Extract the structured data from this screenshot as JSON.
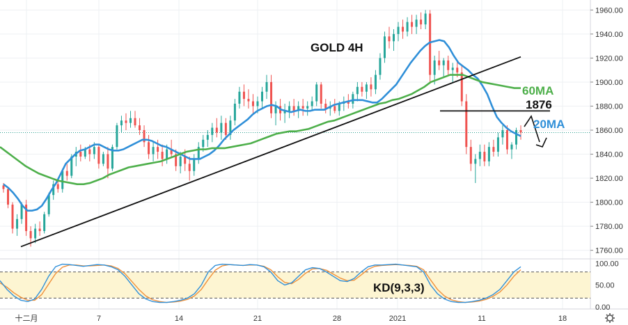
{
  "chart_data": {
    "type": "line",
    "title": "GOLD 4H",
    "price_axis": {
      "ticks": [
        1760,
        1780,
        1800,
        1820,
        1840,
        1860,
        1880,
        1900,
        1920,
        1940,
        1960
      ],
      "tick_labels": [
        "1760.00",
        "1780.00",
        "1800.00",
        "1820.00",
        "1840.00",
        "1860.00",
        "1880.00",
        "1900.00",
        "1920.00",
        "1940.00",
        "1960.00"
      ],
      "range": [
        1754,
        1966
      ]
    },
    "kd_axis": {
      "ticks": [
        0,
        50,
        100
      ],
      "tick_labels": [
        "0.00",
        "50.00",
        "100.00"
      ],
      "range": [
        -5,
        110
      ],
      "bands": [
        20,
        80
      ]
    },
    "x_labels": [
      "十二月",
      "7",
      "14",
      "21",
      "28",
      "2021",
      "11",
      "18"
    ],
    "last_price": 1858,
    "candles": [
      {
        "o": 1814,
        "h": 1816,
        "l": 1808,
        "c": 1811
      },
      {
        "o": 1811,
        "h": 1813,
        "l": 1795,
        "c": 1798
      },
      {
        "o": 1798,
        "h": 1800,
        "l": 1774,
        "c": 1778
      },
      {
        "o": 1778,
        "h": 1790,
        "l": 1772,
        "c": 1786
      },
      {
        "o": 1786,
        "h": 1800,
        "l": 1782,
        "c": 1798
      },
      {
        "o": 1798,
        "h": 1802,
        "l": 1772,
        "c": 1776
      },
      {
        "o": 1776,
        "h": 1780,
        "l": 1763,
        "c": 1770
      },
      {
        "o": 1770,
        "h": 1782,
        "l": 1766,
        "c": 1778
      },
      {
        "o": 1778,
        "h": 1784,
        "l": 1772,
        "c": 1776
      },
      {
        "o": 1776,
        "h": 1792,
        "l": 1774,
        "c": 1790
      },
      {
        "o": 1790,
        "h": 1808,
        "l": 1788,
        "c": 1806
      },
      {
        "o": 1806,
        "h": 1818,
        "l": 1802,
        "c": 1815
      },
      {
        "o": 1815,
        "h": 1820,
        "l": 1808,
        "c": 1811
      },
      {
        "o": 1811,
        "h": 1828,
        "l": 1808,
        "c": 1826
      },
      {
        "o": 1826,
        "h": 1832,
        "l": 1818,
        "c": 1822
      },
      {
        "o": 1822,
        "h": 1840,
        "l": 1820,
        "c": 1838
      },
      {
        "o": 1838,
        "h": 1846,
        "l": 1830,
        "c": 1842
      },
      {
        "o": 1842,
        "h": 1848,
        "l": 1834,
        "c": 1838
      },
      {
        "o": 1838,
        "h": 1846,
        "l": 1836,
        "c": 1844
      },
      {
        "o": 1844,
        "h": 1848,
        "l": 1834,
        "c": 1840
      },
      {
        "o": 1840,
        "h": 1850,
        "l": 1836,
        "c": 1846
      },
      {
        "o": 1846,
        "h": 1848,
        "l": 1828,
        "c": 1832
      },
      {
        "o": 1832,
        "h": 1842,
        "l": 1830,
        "c": 1840
      },
      {
        "o": 1840,
        "h": 1846,
        "l": 1820,
        "c": 1828
      },
      {
        "o": 1828,
        "h": 1848,
        "l": 1826,
        "c": 1846
      },
      {
        "o": 1846,
        "h": 1866,
        "l": 1844,
        "c": 1864
      },
      {
        "o": 1864,
        "h": 1872,
        "l": 1858,
        "c": 1868
      },
      {
        "o": 1868,
        "h": 1874,
        "l": 1860,
        "c": 1866
      },
      {
        "o": 1866,
        "h": 1876,
        "l": 1862,
        "c": 1870
      },
      {
        "o": 1870,
        "h": 1876,
        "l": 1862,
        "c": 1864
      },
      {
        "o": 1864,
        "h": 1870,
        "l": 1856,
        "c": 1860
      },
      {
        "o": 1860,
        "h": 1864,
        "l": 1846,
        "c": 1850
      },
      {
        "o": 1850,
        "h": 1856,
        "l": 1836,
        "c": 1840
      },
      {
        "o": 1840,
        "h": 1850,
        "l": 1834,
        "c": 1846
      },
      {
        "o": 1846,
        "h": 1852,
        "l": 1836,
        "c": 1842
      },
      {
        "o": 1842,
        "h": 1848,
        "l": 1830,
        "c": 1836
      },
      {
        "o": 1836,
        "h": 1848,
        "l": 1832,
        "c": 1844
      },
      {
        "o": 1844,
        "h": 1852,
        "l": 1838,
        "c": 1840
      },
      {
        "o": 1840,
        "h": 1844,
        "l": 1826,
        "c": 1830
      },
      {
        "o": 1830,
        "h": 1842,
        "l": 1824,
        "c": 1838
      },
      {
        "o": 1838,
        "h": 1844,
        "l": 1826,
        "c": 1832
      },
      {
        "o": 1832,
        "h": 1838,
        "l": 1818,
        "c": 1826
      },
      {
        "o": 1826,
        "h": 1840,
        "l": 1822,
        "c": 1836
      },
      {
        "o": 1836,
        "h": 1850,
        "l": 1832,
        "c": 1846
      },
      {
        "o": 1846,
        "h": 1856,
        "l": 1842,
        "c": 1852
      },
      {
        "o": 1852,
        "h": 1860,
        "l": 1846,
        "c": 1856
      },
      {
        "o": 1856,
        "h": 1866,
        "l": 1850,
        "c": 1862
      },
      {
        "o": 1862,
        "h": 1870,
        "l": 1854,
        "c": 1858
      },
      {
        "o": 1858,
        "h": 1872,
        "l": 1852,
        "c": 1866
      },
      {
        "o": 1866,
        "h": 1870,
        "l": 1852,
        "c": 1856
      },
      {
        "o": 1856,
        "h": 1872,
        "l": 1852,
        "c": 1868
      },
      {
        "o": 1868,
        "h": 1886,
        "l": 1864,
        "c": 1882
      },
      {
        "o": 1882,
        "h": 1896,
        "l": 1878,
        "c": 1892
      },
      {
        "o": 1892,
        "h": 1898,
        "l": 1880,
        "c": 1886
      },
      {
        "o": 1886,
        "h": 1894,
        "l": 1878,
        "c": 1884
      },
      {
        "o": 1884,
        "h": 1890,
        "l": 1874,
        "c": 1880
      },
      {
        "o": 1880,
        "h": 1888,
        "l": 1874,
        "c": 1884
      },
      {
        "o": 1884,
        "h": 1896,
        "l": 1878,
        "c": 1892
      },
      {
        "o": 1892,
        "h": 1906,
        "l": 1886,
        "c": 1900
      },
      {
        "o": 1900,
        "h": 1906,
        "l": 1870,
        "c": 1874
      },
      {
        "o": 1874,
        "h": 1884,
        "l": 1864,
        "c": 1880
      },
      {
        "o": 1880,
        "h": 1886,
        "l": 1868,
        "c": 1874
      },
      {
        "o": 1874,
        "h": 1882,
        "l": 1866,
        "c": 1876
      },
      {
        "o": 1876,
        "h": 1884,
        "l": 1870,
        "c": 1880
      },
      {
        "o": 1880,
        "h": 1886,
        "l": 1872,
        "c": 1876
      },
      {
        "o": 1876,
        "h": 1884,
        "l": 1870,
        "c": 1880
      },
      {
        "o": 1880,
        "h": 1886,
        "l": 1872,
        "c": 1878
      },
      {
        "o": 1878,
        "h": 1884,
        "l": 1872,
        "c": 1880
      },
      {
        "o": 1880,
        "h": 1888,
        "l": 1876,
        "c": 1884
      },
      {
        "o": 1884,
        "h": 1900,
        "l": 1880,
        "c": 1898
      },
      {
        "o": 1898,
        "h": 1900,
        "l": 1878,
        "c": 1882
      },
      {
        "o": 1882,
        "h": 1886,
        "l": 1874,
        "c": 1878
      },
      {
        "o": 1878,
        "h": 1884,
        "l": 1872,
        "c": 1880
      },
      {
        "o": 1880,
        "h": 1886,
        "l": 1874,
        "c": 1876
      },
      {
        "o": 1876,
        "h": 1884,
        "l": 1872,
        "c": 1882
      },
      {
        "o": 1882,
        "h": 1888,
        "l": 1876,
        "c": 1884
      },
      {
        "o": 1884,
        "h": 1890,
        "l": 1878,
        "c": 1882
      },
      {
        "o": 1882,
        "h": 1892,
        "l": 1878,
        "c": 1890
      },
      {
        "o": 1890,
        "h": 1900,
        "l": 1884,
        "c": 1896
      },
      {
        "o": 1896,
        "h": 1900,
        "l": 1888,
        "c": 1892
      },
      {
        "o": 1892,
        "h": 1900,
        "l": 1886,
        "c": 1898
      },
      {
        "o": 1898,
        "h": 1904,
        "l": 1888,
        "c": 1894
      },
      {
        "o": 1894,
        "h": 1910,
        "l": 1890,
        "c": 1906
      },
      {
        "o": 1906,
        "h": 1924,
        "l": 1902,
        "c": 1920
      },
      {
        "o": 1920,
        "h": 1942,
        "l": 1916,
        "c": 1938
      },
      {
        "o": 1938,
        "h": 1946,
        "l": 1928,
        "c": 1934
      },
      {
        "o": 1934,
        "h": 1944,
        "l": 1926,
        "c": 1940
      },
      {
        "o": 1940,
        "h": 1950,
        "l": 1934,
        "c": 1946
      },
      {
        "o": 1946,
        "h": 1952,
        "l": 1936,
        "c": 1942
      },
      {
        "o": 1942,
        "h": 1954,
        "l": 1938,
        "c": 1950
      },
      {
        "o": 1950,
        "h": 1956,
        "l": 1940,
        "c": 1946
      },
      {
        "o": 1946,
        "h": 1956,
        "l": 1940,
        "c": 1952
      },
      {
        "o": 1952,
        "h": 1958,
        "l": 1944,
        "c": 1948
      },
      {
        "o": 1948,
        "h": 1960,
        "l": 1944,
        "c": 1957
      },
      {
        "o": 1957,
        "h": 1960,
        "l": 1900,
        "c": 1906
      },
      {
        "o": 1906,
        "h": 1922,
        "l": 1898,
        "c": 1918
      },
      {
        "o": 1918,
        "h": 1926,
        "l": 1910,
        "c": 1914
      },
      {
        "o": 1914,
        "h": 1920,
        "l": 1904,
        "c": 1918
      },
      {
        "o": 1918,
        "h": 1922,
        "l": 1906,
        "c": 1910
      },
      {
        "o": 1910,
        "h": 1916,
        "l": 1900,
        "c": 1912
      },
      {
        "o": 1912,
        "h": 1918,
        "l": 1904,
        "c": 1908
      },
      {
        "o": 1908,
        "h": 1914,
        "l": 1880,
        "c": 1884
      },
      {
        "o": 1884,
        "h": 1890,
        "l": 1840,
        "c": 1846
      },
      {
        "o": 1846,
        "h": 1852,
        "l": 1826,
        "c": 1832
      },
      {
        "o": 1832,
        "h": 1840,
        "l": 1816,
        "c": 1836
      },
      {
        "o": 1836,
        "h": 1848,
        "l": 1830,
        "c": 1842
      },
      {
        "o": 1842,
        "h": 1848,
        "l": 1830,
        "c": 1834
      },
      {
        "o": 1834,
        "h": 1850,
        "l": 1830,
        "c": 1846
      },
      {
        "o": 1846,
        "h": 1852,
        "l": 1838,
        "c": 1842
      },
      {
        "o": 1842,
        "h": 1858,
        "l": 1838,
        "c": 1854
      },
      {
        "o": 1854,
        "h": 1864,
        "l": 1848,
        "c": 1860
      },
      {
        "o": 1860,
        "h": 1864,
        "l": 1840,
        "c": 1844
      },
      {
        "o": 1844,
        "h": 1850,
        "l": 1836,
        "c": 1848
      },
      {
        "o": 1848,
        "h": 1862,
        "l": 1844,
        "c": 1860
      },
      {
        "o": 1860,
        "h": 1864,
        "l": 1852,
        "c": 1858
      }
    ],
    "series": [
      {
        "name": "20MA",
        "color": "#2f8fd8",
        "values": [
          1815,
          1812,
          1808,
          1803,
          1797,
          1793,
          1793,
          1794,
          1797,
          1803,
          1810,
          1816,
          1824,
          1832,
          1836,
          1840,
          1843,
          1844,
          1846,
          1848,
          1848,
          1846,
          1844,
          1843,
          1843,
          1844,
          1846,
          1848,
          1850,
          1852,
          1852,
          1851,
          1849,
          1847,
          1846,
          1844,
          1842,
          1840,
          1838,
          1836,
          1836,
          1836,
          1838,
          1840,
          1843,
          1847,
          1852,
          1856,
          1860,
          1863,
          1866,
          1869,
          1873,
          1876,
          1878,
          1880,
          1881,
          1880,
          1877,
          1876,
          1875,
          1876,
          1877,
          1876,
          1876,
          1877,
          1877,
          1877,
          1879,
          1881,
          1882,
          1883,
          1884,
          1885,
          1885,
          1885,
          1884,
          1883,
          1883,
          1886,
          1890,
          1894,
          1898,
          1904,
          1910,
          1916,
          1921,
          1926,
          1930,
          1933,
          1934,
          1935,
          1934,
          1929,
          1922,
          1916,
          1913,
          1910,
          1906,
          1903,
          1897,
          1890,
          1880,
          1871,
          1866,
          1862,
          1859,
          1857,
          1855
        ]
      },
      {
        "name": "60MA",
        "color": "#4daf4a",
        "values": [
          1846,
          1842,
          1838,
          1834,
          1830,
          1827,
          1824,
          1822,
          1820,
          1818,
          1817,
          1816,
          1815,
          1815,
          1816,
          1818,
          1820,
          1823,
          1825,
          1827,
          1829,
          1830,
          1831,
          1832,
          1833,
          1834,
          1836,
          1838,
          1840,
          1842,
          1843,
          1844,
          1844,
          1845,
          1845,
          1845,
          1846,
          1847,
          1848,
          1849,
          1851,
          1853,
          1855,
          1857,
          1858,
          1859,
          1859,
          1860,
          1861,
          1863,
          1865,
          1867,
          1868,
          1870,
          1872,
          1874,
          1876,
          1878,
          1880,
          1882,
          1883,
          1885,
          1886,
          1888,
          1890,
          1893,
          1896,
          1900,
          1902,
          1904,
          1906,
          1906,
          1906,
          1904,
          1902,
          1900,
          1899,
          1898,
          1897,
          1896,
          1895,
          1895
        ]
      },
      {
        "name": "K",
        "color": "#2f8fd8",
        "values": [
          60,
          40,
          25,
          15,
          12,
          18,
          40,
          70,
          92,
          98,
          97,
          95,
          93,
          95,
          97,
          96,
          92,
          85,
          70,
          50,
          30,
          18,
          12,
          10,
          10,
          12,
          15,
          20,
          30,
          50,
          80,
          95,
          98,
          97,
          96,
          95,
          97,
          96,
          92,
          80,
          60,
          50,
          55,
          70,
          85,
          90,
          88,
          80,
          70,
          60,
          58,
          65,
          80,
          92,
          96,
          96,
          97,
          98,
          96,
          94,
          92,
          80,
          50,
          30,
          18,
          12,
          10,
          10,
          12,
          15,
          20,
          28,
          40,
          60,
          80,
          92
        ]
      },
      {
        "name": "D",
        "color": "#f0913a",
        "values": [
          55,
          45,
          32,
          22,
          15,
          15,
          28,
          52,
          76,
          91,
          96,
          96,
          94,
          94,
          95,
          96,
          94,
          88,
          76,
          58,
          40,
          25,
          16,
          12,
          10,
          11,
          13,
          17,
          25,
          40,
          63,
          84,
          94,
          97,
          96,
          95,
          96,
          96,
          93,
          85,
          69,
          56,
          53,
          63,
          77,
          87,
          88,
          84,
          75,
          66,
          60,
          61,
          73,
          86,
          93,
          95,
          96,
          97,
          96,
          95,
          93,
          85,
          62,
          40,
          25,
          16,
          12,
          10,
          11,
          13,
          17,
          24,
          34,
          50,
          70,
          85
        ]
      }
    ],
    "annotations": {
      "trend_line": [
        [
          1763,
          1921
        ]
      ],
      "level": "1876",
      "label_60ma": "60MA",
      "label_20ma": "20MA",
      "indicator": "KD(9,3,3)"
    }
  }
}
